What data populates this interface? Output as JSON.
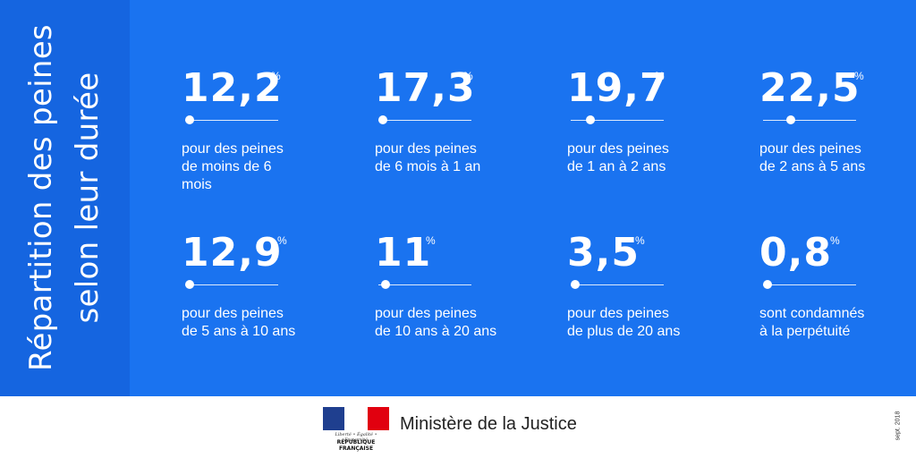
{
  "sidebar": {
    "title_line1": "Répartition des peines",
    "title_line2": "selon leur durée"
  },
  "stats": [
    {
      "value": "12,2",
      "unit": "%",
      "line1": "pour des peines",
      "line2": "de moins de 6",
      "line3": "mois"
    },
    {
      "value": "17,3",
      "unit": "%",
      "line1": "pour des peines",
      "line2": "de 6 mois à 1 an"
    },
    {
      "value": "19,7",
      "unit": "%",
      "line1": "pour des peines",
      "line2": "de 1 an à 2 ans"
    },
    {
      "value": "22,5",
      "unit": "%",
      "line1": "pour des peines",
      "line2": "de 2 ans à 5 ans"
    },
    {
      "value": "12,9",
      "unit": "%",
      "line1": "pour des peines",
      "line2": "de 5 ans à 10 ans"
    },
    {
      "value": "11",
      "unit": "%",
      "line1": "pour des peines",
      "line2": "de 10 ans à 20 ans"
    },
    {
      "value": "3,5",
      "unit": "%",
      "line1": "pour des peines",
      "line2": "de plus de 20 ans"
    },
    {
      "value": "0,8",
      "unit": "%",
      "line1": "sont condamnés",
      "line2": "à la perpétuité"
    }
  ],
  "footer": {
    "logo_motto": "Liberté • Égalité • Fraternité",
    "logo_rf": "RÉPUBLIQUE FRANÇAISE",
    "ministry": "Ministère de la Justice",
    "date": "sept. 2018"
  },
  "colors": {
    "background": "#1a73f0",
    "sidebar": "#1565e0",
    "text": "#ffffff",
    "footer_bg": "#ffffff"
  }
}
